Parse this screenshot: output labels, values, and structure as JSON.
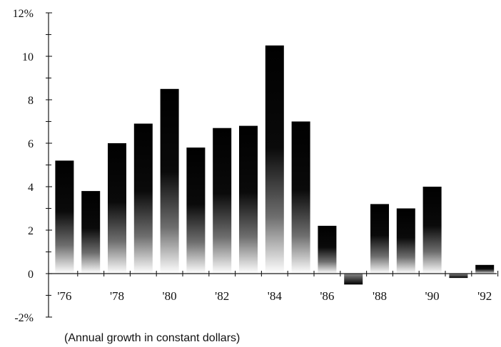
{
  "chart_data": {
    "type": "bar",
    "title": "",
    "caption": "(Annual growth in constant dollars)",
    "xlabel": "",
    "ylabel": "",
    "categories": [
      "1976",
      "1977",
      "1978",
      "1979",
      "1980",
      "1981",
      "1982",
      "1983",
      "1984",
      "1985",
      "1986",
      "1987",
      "1988",
      "1989",
      "1990",
      "1991",
      "1992"
    ],
    "values": [
      5.2,
      3.8,
      6.0,
      6.9,
      8.5,
      5.8,
      6.7,
      6.8,
      10.5,
      7.0,
      2.2,
      -0.5,
      3.2,
      3.0,
      4.0,
      -0.2,
      0.4
    ],
    "x_tick_labels": [
      "'76",
      "'78",
      "'80",
      "'82",
      "'84",
      "'86",
      "'88",
      "'90",
      "'92"
    ],
    "x_tick_label_every": 2,
    "y_tick_labels": [
      "12%",
      "10",
      "8",
      "6",
      "4",
      "2",
      "0",
      "-2%"
    ],
    "y_tick_values": [
      12,
      10,
      8,
      6,
      4,
      2,
      0,
      -2
    ],
    "y_minor_tick_step": 1,
    "ylim": [
      -2,
      12
    ],
    "grid": false,
    "legend": "none",
    "bar_fill": "vertical gradient, black at top fading to white at the zero line",
    "colors": {
      "bar_dark": "#000000",
      "bar_light": "#ffffff",
      "axis": "#1a1a1a",
      "background": "#ffffff"
    }
  }
}
